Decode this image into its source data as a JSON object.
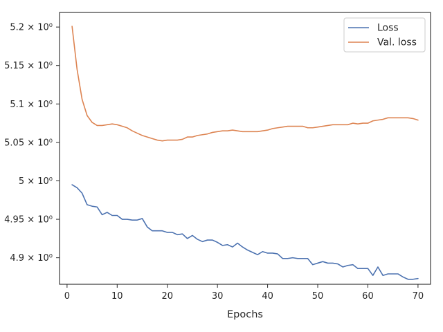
{
  "chart_data": {
    "type": "line",
    "xlabel": "Epochs",
    "ylabel": "",
    "xlim": [
      -1.5,
      72.5
    ],
    "ylim": [
      4.8655,
      5.219
    ],
    "x_ticks": [
      0,
      10,
      20,
      30,
      40,
      50,
      60,
      70
    ],
    "x_tick_labels": [
      "0",
      "10",
      "20",
      "30",
      "40",
      "50",
      "60",
      "70"
    ],
    "y_ticks": [
      4.9,
      4.95,
      5.0,
      5.05,
      5.1,
      5.15,
      5.2
    ],
    "y_tick_labels": [
      "4.9 × 10⁰",
      "4.95 × 10⁰",
      "5 × 10⁰",
      "5.05 × 10⁰",
      "5.1 × 10⁰",
      "5.15 × 10⁰",
      "5.2 × 10⁰"
    ],
    "grid": false,
    "legend_position": "top-right",
    "series": [
      {
        "name": "Loss",
        "color": "#4c72b0",
        "x": [
          1,
          2,
          3,
          4,
          5,
          6,
          7,
          8,
          9,
          10,
          11,
          12,
          13,
          14,
          15,
          16,
          17,
          18,
          19,
          20,
          21,
          22,
          23,
          24,
          25,
          26,
          27,
          28,
          29,
          30,
          31,
          32,
          33,
          34,
          35,
          36,
          37,
          38,
          39,
          40,
          41,
          42,
          43,
          44,
          45,
          46,
          47,
          48,
          49,
          50,
          51,
          52,
          53,
          54,
          55,
          56,
          57,
          58,
          59,
          60,
          61,
          62,
          63,
          64,
          65,
          66,
          67,
          68,
          69,
          70
        ],
        "values": [
          4.995,
          4.991,
          4.984,
          4.969,
          4.967,
          4.966,
          4.956,
          4.959,
          4.955,
          4.955,
          4.95,
          4.95,
          4.949,
          4.949,
          4.951,
          4.94,
          4.935,
          4.935,
          4.935,
          4.933,
          4.933,
          4.93,
          4.931,
          4.925,
          4.929,
          4.924,
          4.921,
          4.923,
          4.923,
          4.92,
          4.916,
          4.917,
          4.914,
          4.919,
          4.914,
          4.91,
          4.907,
          4.904,
          4.908,
          4.906,
          4.906,
          4.905,
          4.899,
          4.899,
          4.9,
          4.899,
          4.899,
          4.899,
          4.891,
          4.893,
          4.895,
          4.893,
          4.893,
          4.892,
          4.888,
          4.89,
          4.891,
          4.886,
          4.886,
          4.886,
          4.877,
          4.888,
          4.877,
          4.879,
          4.879,
          4.879,
          4.875,
          4.872,
          4.872,
          4.873
        ]
      },
      {
        "name": "Val. loss",
        "color": "#dd8452",
        "x": [
          1,
          2,
          3,
          4,
          5,
          6,
          7,
          8,
          9,
          10,
          11,
          12,
          13,
          14,
          15,
          16,
          17,
          18,
          19,
          20,
          21,
          22,
          23,
          24,
          25,
          26,
          27,
          28,
          29,
          30,
          31,
          32,
          33,
          34,
          35,
          36,
          37,
          38,
          39,
          40,
          41,
          42,
          43,
          44,
          45,
          46,
          47,
          48,
          49,
          50,
          51,
          52,
          53,
          54,
          55,
          56,
          57,
          58,
          59,
          60,
          61,
          62,
          63,
          64,
          65,
          66,
          67,
          68,
          69,
          70
        ],
        "values": [
          5.201,
          5.145,
          5.106,
          5.085,
          5.076,
          5.072,
          5.072,
          5.073,
          5.074,
          5.073,
          5.071,
          5.069,
          5.065,
          5.062,
          5.059,
          5.057,
          5.055,
          5.053,
          5.052,
          5.053,
          5.053,
          5.053,
          5.054,
          5.057,
          5.057,
          5.059,
          5.06,
          5.061,
          5.063,
          5.064,
          5.065,
          5.065,
          5.066,
          5.065,
          5.064,
          5.064,
          5.064,
          5.064,
          5.065,
          5.066,
          5.068,
          5.069,
          5.07,
          5.071,
          5.071,
          5.071,
          5.071,
          5.069,
          5.069,
          5.07,
          5.071,
          5.072,
          5.073,
          5.073,
          5.073,
          5.073,
          5.075,
          5.074,
          5.075,
          5.075,
          5.078,
          5.079,
          5.08,
          5.082,
          5.082,
          5.082,
          5.082,
          5.082,
          5.081,
          5.079
        ]
      }
    ]
  }
}
